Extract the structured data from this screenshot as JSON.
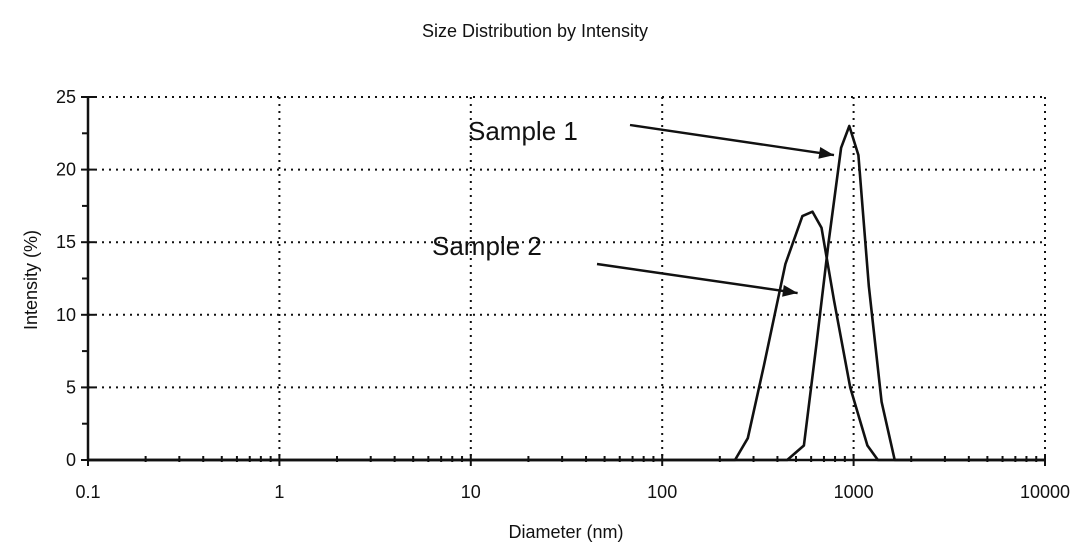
{
  "chart_data": {
    "type": "line",
    "title": "Size Distribution by Intensity",
    "xlabel": "Diameter (nm)",
    "ylabel": "Intensity (%)",
    "xscale": "log",
    "xlim": [
      0.1,
      10000
    ],
    "ylim": [
      0,
      25
    ],
    "grid": true,
    "x_ticks": [
      {
        "value": 0.1,
        "label": "0.1"
      },
      {
        "value": 1,
        "label": "1"
      },
      {
        "value": 10,
        "label": "10"
      },
      {
        "value": 100,
        "label": "100"
      },
      {
        "value": 1000,
        "label": "1000"
      },
      {
        "value": 10000,
        "label": "10000"
      }
    ],
    "y_ticks": [
      {
        "value": 0,
        "label": "0"
      },
      {
        "value": 5,
        "label": "5"
      },
      {
        "value": 10,
        "label": "10"
      },
      {
        "value": 15,
        "label": "15"
      },
      {
        "value": 20,
        "label": "20"
      },
      {
        "value": 25,
        "label": "25"
      }
    ],
    "series": [
      {
        "name": "Sample 1",
        "points": [
          [
            0.1,
            0
          ],
          [
            450,
            0
          ],
          [
            550,
            1
          ],
          [
            640,
            8
          ],
          [
            740,
            15
          ],
          [
            860,
            21.5
          ],
          [
            950,
            23
          ],
          [
            1060,
            21
          ],
          [
            1200,
            12
          ],
          [
            1400,
            4
          ],
          [
            1640,
            0
          ],
          [
            10000,
            0
          ]
        ]
      },
      {
        "name": "Sample 2",
        "points": [
          [
            0.1,
            0
          ],
          [
            240,
            0
          ],
          [
            280,
            1.5
          ],
          [
            340,
            6.5
          ],
          [
            440,
            13.5
          ],
          [
            540,
            16.8
          ],
          [
            610,
            17.1
          ],
          [
            680,
            16
          ],
          [
            790,
            11
          ],
          [
            960,
            5
          ],
          [
            1180,
            1
          ],
          [
            1340,
            0
          ],
          [
            10000,
            0
          ]
        ]
      }
    ],
    "annotations": [
      {
        "text": "Sample 1",
        "series": "Sample 1",
        "arrow_to": [
          790,
          21
        ]
      },
      {
        "text": "Sample 2",
        "series": "Sample 2",
        "arrow_to": [
          510,
          11.5
        ]
      }
    ]
  }
}
